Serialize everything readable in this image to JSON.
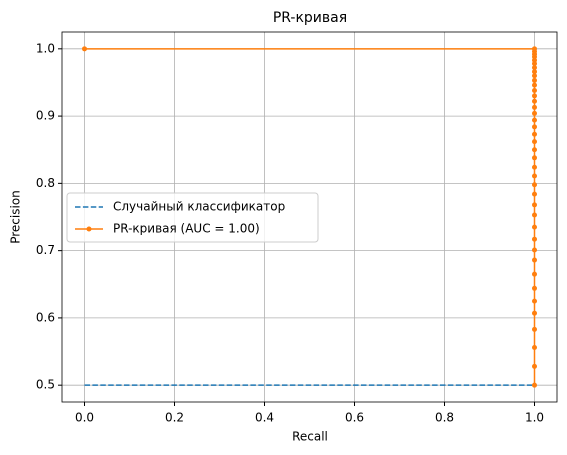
{
  "chart_data": {
    "type": "line",
    "title": "PR-кривая",
    "x_label": "Recall",
    "y_label": "Precision",
    "xlim": [
      -0.05,
      1.05
    ],
    "ylim": [
      0.475,
      1.025
    ],
    "xticks": [
      {
        "value": 0,
        "label": "0.0"
      },
      0.2,
      0.4,
      0.6,
      0.8,
      {
        "value": 1,
        "label": "1.0"
      }
    ],
    "yticks": [
      0.5,
      0.6,
      0.7,
      0.8,
      0.9,
      {
        "value": 1,
        "label": "1.0"
      }
    ],
    "grid": true,
    "legend": "center left",
    "series": [
      {
        "name": "Случайный классификатор",
        "color": "#1f77b4",
        "dashed": true,
        "markers": false,
        "x": [
          0,
          1
        ],
        "values": [
          0.5,
          0.5
        ]
      },
      {
        "name": "PR-кривая (AUC = 1.00)",
        "color": "#ff7f0e",
        "dashed": false,
        "markers": true,
        "x": [
          0,
          1,
          1,
          1,
          1,
          1,
          1,
          1,
          1,
          1,
          1,
          1,
          1,
          1,
          1,
          1,
          1,
          1,
          1,
          1,
          1,
          1,
          1,
          1,
          1,
          1,
          1,
          1,
          1,
          1,
          1,
          1,
          1,
          1,
          1,
          1,
          1,
          1,
          1,
          1,
          1
        ],
        "values": [
          1,
          1,
          0.996,
          0.992,
          0.988,
          0.983,
          0.978,
          0.972,
          0.966,
          0.96,
          0.953,
          0.946,
          0.938,
          0.93,
          0.922,
          0.913,
          0.904,
          0.894,
          0.884,
          0.873,
          0.862,
          0.85,
          0.838,
          0.824,
          0.811,
          0.798,
          0.784,
          0.768,
          0.753,
          0.735,
          0.717,
          0.701,
          0.686,
          0.665,
          0.644,
          0.625,
          0.607,
          0.583,
          0.556,
          0.528,
          0.5
        ]
      }
    ]
  }
}
